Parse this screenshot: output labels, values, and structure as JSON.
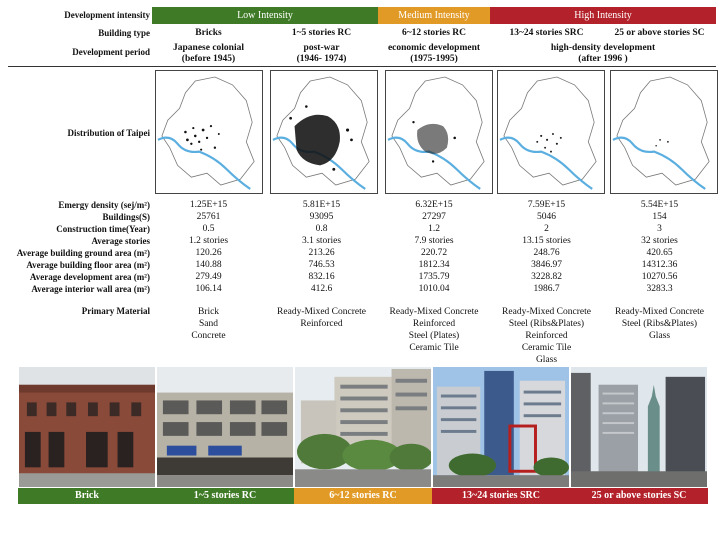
{
  "labels": {
    "development_intensity": "Development intensity",
    "building_type": "Building type",
    "development_period": "Development period",
    "distribution": "Distribution of Taipei",
    "emergy_density": "Emergy density (sej/m²)",
    "buildings": "Buildings(S)",
    "construction_time": "Construction time(Year)",
    "average_stories": "Average stories",
    "ground_area": "Average building ground area (m²)",
    "floor_area": "Average building floor area (m²)",
    "development_area": "Average development area (m²)",
    "interior_wall_area": "Average interior wall area (m²)",
    "primary_material": "Primary Material"
  },
  "intensity": {
    "low": "Low Intensity",
    "medium": "Medium Intensity",
    "high": "High Intensity"
  },
  "colors": {
    "low": "#3f7b26",
    "medium": "#e29a26",
    "high": "#b3212a",
    "river": "#5aaee0"
  },
  "periods": {
    "p1_line1": "Japanese colonial",
    "p1_line2": "(before 1945)",
    "p2_line1": "post-war",
    "p2_line2": "(1946- 1974)",
    "p3_line1": "economic development",
    "p3_line2": "(1975-1995)",
    "p4_line1": "high-density development",
    "p4_line2": "(after 1996 )"
  },
  "columns": [
    {
      "type": "Bricks",
      "emergy": "1.25E+15",
      "buildings": "25761",
      "construction": "0.5",
      "stories": "1.2 stories",
      "ground": "120.26",
      "floor": "140.88",
      "development": "279.49",
      "interior": "106.14",
      "materials": [
        "Brick",
        "Sand",
        "Concrete"
      ],
      "caption": "Brick"
    },
    {
      "type": "1~5 stories RC",
      "emergy": "5.81E+15",
      "buildings": "93095",
      "construction": "0.8",
      "stories": "3.1 stories",
      "ground": "213.26",
      "floor": "746.53",
      "development": "832.16",
      "interior": "412.6",
      "materials": [
        "Ready-Mixed Concrete",
        "Reinforced"
      ],
      "caption": "1~5 stories RC"
    },
    {
      "type": "6~12 stories RC",
      "emergy": "6.32E+15",
      "buildings": "27297",
      "construction": "1.2",
      "stories": "7.9 stories",
      "ground": "220.72",
      "floor": "1812.34",
      "development": "1735.79",
      "interior": "1010.04",
      "materials": [
        "Ready-Mixed Concrete",
        "Reinforced",
        "Steel (Plates)",
        "Ceramic Tile"
      ],
      "caption": "6~12 stories RC"
    },
    {
      "type": "13~24 stories SRC",
      "emergy": "7.59E+15",
      "buildings": "5046",
      "construction": "2",
      "stories": "13.15 stories",
      "ground": "248.76",
      "floor": "3846.97",
      "development": "3228.82",
      "interior": "1986.7",
      "materials": [
        "Ready-Mixed Concrete",
        "Steel (Ribs&Plates)",
        "Reinforced",
        "Ceramic Tile",
        "Glass"
      ],
      "caption": "13~24 stories SRC"
    },
    {
      "type": "25 or above stories SC",
      "emergy": "5.54E+15",
      "buildings": "154",
      "construction": "3",
      "stories": "32 stories",
      "ground": "420.65",
      "floor": "14312.36",
      "development": "10270.56",
      "interior": "3283.3",
      "materials": [
        "Ready-Mixed Concrete",
        "Steel (Ribs&Plates)",
        "Glass"
      ],
      "caption": "25 or above stories SC"
    }
  ]
}
